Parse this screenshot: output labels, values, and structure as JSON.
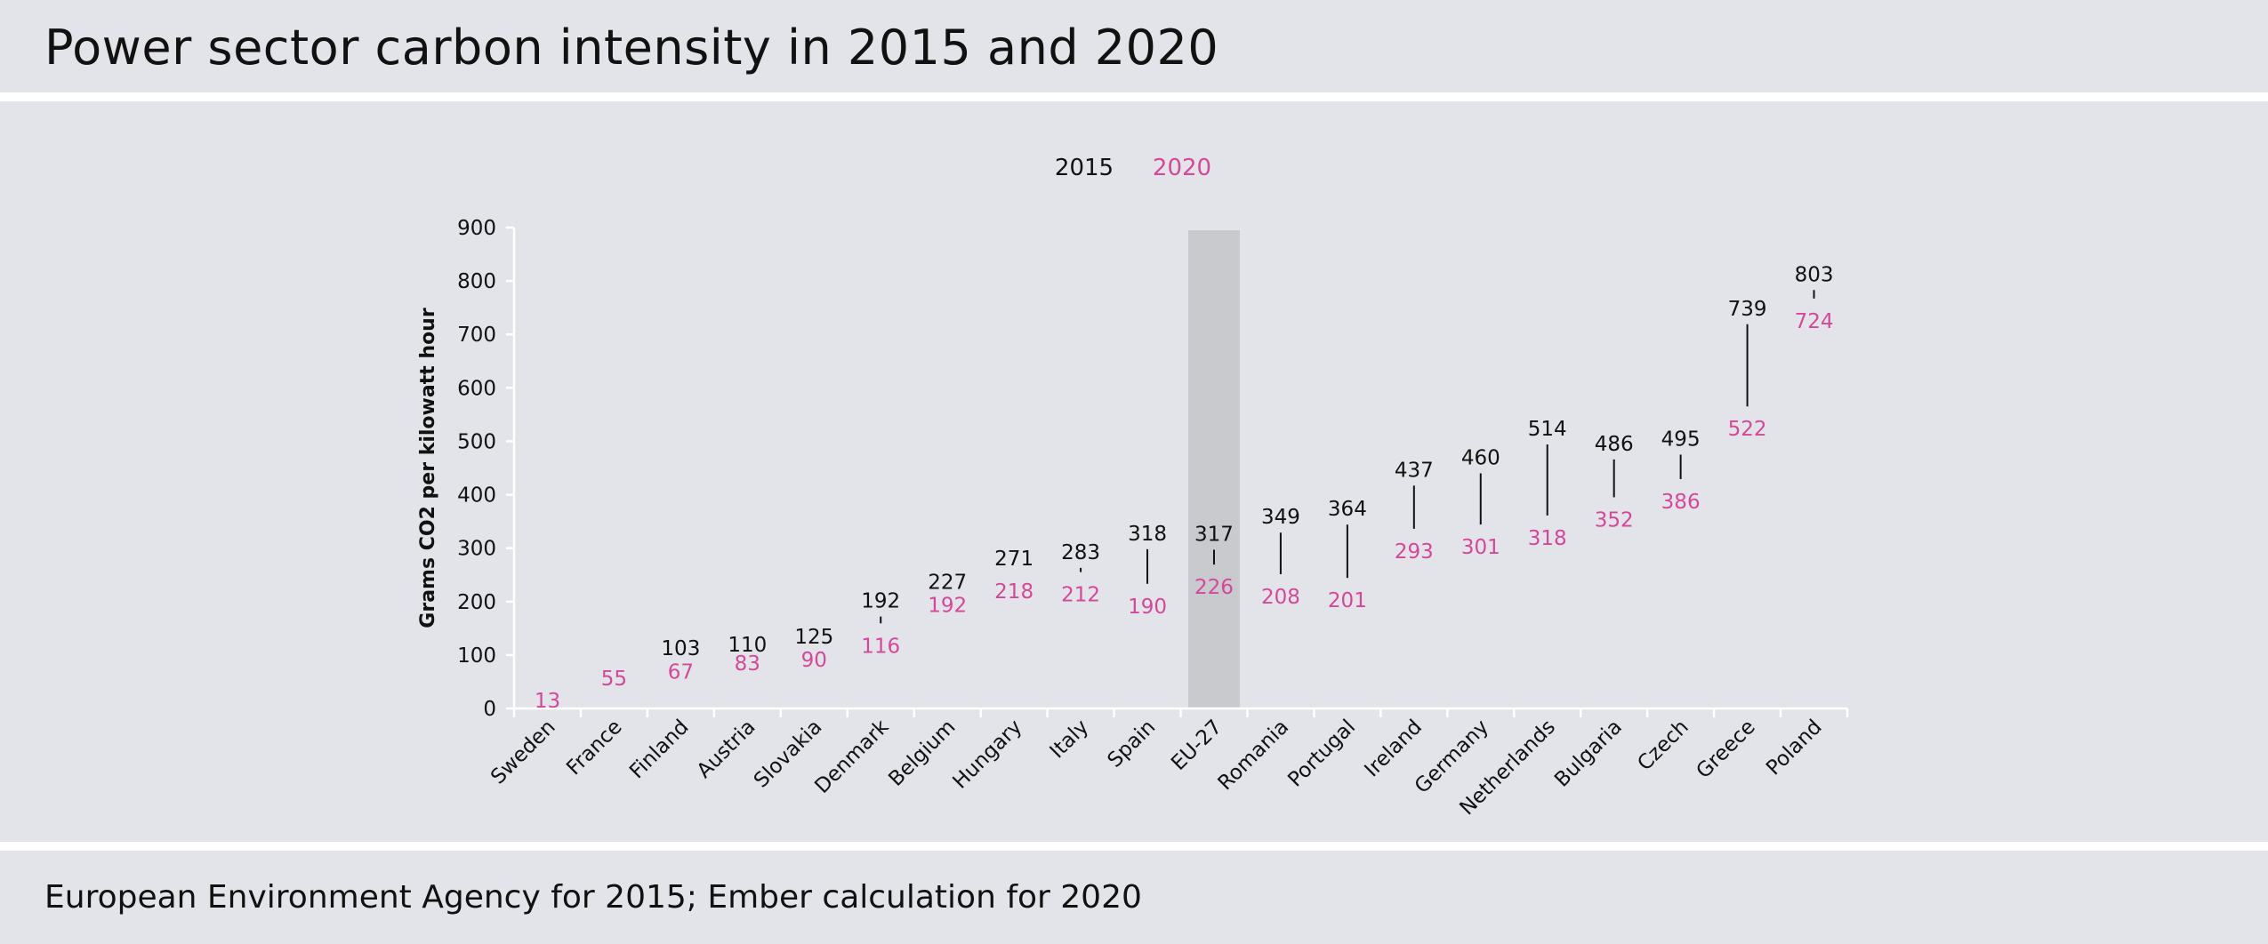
{
  "header": {
    "title": "Power sector carbon intensity in 2015 and 2020"
  },
  "footer": {
    "source": "European Environment Agency for 2015; Ember calculation for 2020"
  },
  "chart_data": {
    "type": "dumbbell",
    "ylabel": "Grams CO2 per kilowatt hour",
    "ylim": [
      0,
      900
    ],
    "yticks": [
      0,
      100,
      200,
      300,
      400,
      500,
      600,
      700,
      800,
      900
    ],
    "highlight_category": "EU-27",
    "legend": {
      "position": "top-center",
      "entries": [
        "2015",
        "2020"
      ]
    },
    "colors": {
      "2015": "#111111",
      "2020": "#d6479a",
      "highlight": "#c9cace",
      "axis": "#ffffff"
    },
    "categories": [
      "Sweden",
      "France",
      "Finland",
      "Austria",
      "Slovakia",
      "Denmark",
      "Belgium",
      "Hungary",
      "Italy",
      "Spain",
      "EU-27",
      "Romania",
      "Portugal",
      "Ireland",
      "Germany",
      "Netherlands",
      "Bulgaria",
      "Czech",
      "Greece",
      "Poland"
    ],
    "series": [
      {
        "name": "2015",
        "values": [
          null,
          null,
          103,
          110,
          125,
          192,
          227,
          271,
          283,
          318,
          317,
          349,
          364,
          437,
          460,
          514,
          486,
          495,
          739,
          803
        ]
      },
      {
        "name": "2020",
        "values": [
          13,
          55,
          67,
          83,
          90,
          116,
          192,
          218,
          212,
          190,
          226,
          208,
          201,
          293,
          301,
          318,
          352,
          386,
          522,
          724
        ]
      }
    ]
  }
}
